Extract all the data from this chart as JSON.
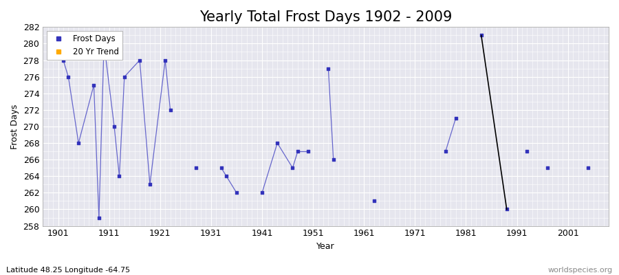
{
  "title": "Yearly Total Frost Days 1902 - 2009",
  "xlabel": "Year",
  "ylabel": "Frost Days",
  "xlim": [
    1898,
    2009
  ],
  "ylim": [
    258,
    282
  ],
  "yticks": [
    258,
    260,
    262,
    264,
    266,
    268,
    270,
    272,
    274,
    276,
    278,
    280,
    282
  ],
  "xticks": [
    1901,
    1911,
    1921,
    1931,
    1941,
    1951,
    1961,
    1971,
    1981,
    1991,
    2001
  ],
  "xticklabels": [
    "1901",
    "1911",
    "1921",
    "1931",
    "1941",
    "1951",
    "1961",
    "1971",
    "1981",
    "1991",
    "2001"
  ],
  "frost_days": [
    [
      1902,
      278
    ],
    [
      1903,
      276
    ],
    [
      1905,
      268
    ],
    [
      1908,
      275
    ],
    [
      1909,
      259
    ],
    [
      1910,
      280
    ],
    [
      1912,
      270
    ],
    [
      1913,
      264
    ],
    [
      1914,
      276
    ],
    [
      1917,
      278
    ],
    [
      1919,
      263
    ],
    [
      1922,
      278
    ],
    [
      1923,
      272
    ],
    [
      1928,
      265
    ],
    [
      1933,
      265
    ],
    [
      1934,
      264
    ],
    [
      1936,
      262
    ],
    [
      1941,
      262
    ],
    [
      1944,
      268
    ],
    [
      1947,
      265
    ],
    [
      1948,
      267
    ],
    [
      1950,
      267
    ],
    [
      1954,
      277
    ],
    [
      1955,
      266
    ],
    [
      1963,
      261
    ],
    [
      1977,
      267
    ],
    [
      1979,
      271
    ],
    [
      1984,
      281
    ],
    [
      1989,
      260
    ],
    [
      1993,
      267
    ],
    [
      1997,
      265
    ],
    [
      2005,
      265
    ]
  ],
  "trend_line": [
    [
      1984,
      281
    ],
    [
      1989,
      260
    ]
  ],
  "connect_threshold": 3,
  "scatter_color": "#3333bb",
  "line_color": "#6666cc",
  "trend_line_color": "#000000",
  "background_color": "#e6e6ee",
  "grid_color": "#ffffff",
  "legend_dot_color": "#3333bb",
  "legend_trend_color": "#ffaa00",
  "subtitle": "Latitude 48.25 Longitude -64.75",
  "watermark": "worldspecies.org",
  "title_fontsize": 15,
  "label_fontsize": 9
}
